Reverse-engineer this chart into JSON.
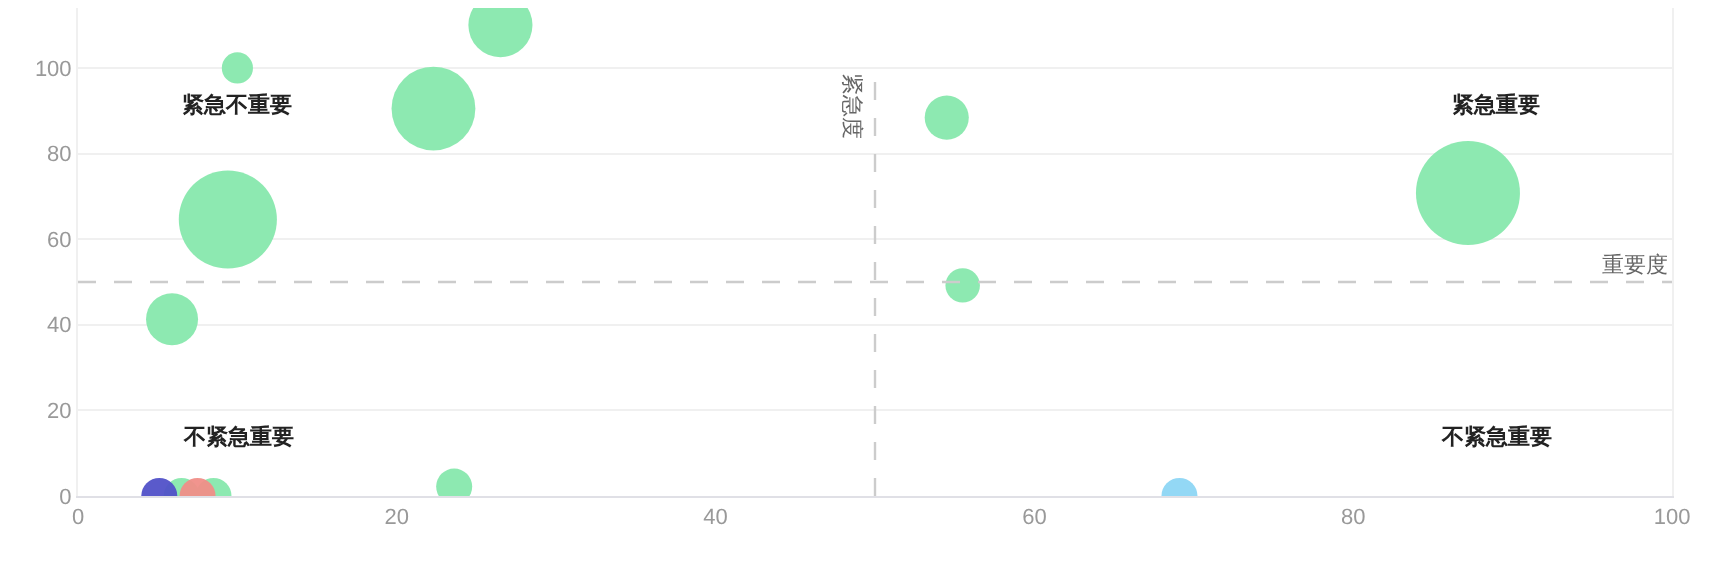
{
  "chart_data": {
    "type": "bubble",
    "annotations": [
      "紧急不重要",
      "紧急重要",
      "不紧急重要",
      "不紧急重要"
    ],
    "x": [
      10,
      26.5,
      22.3,
      9.4,
      5.9,
      54.5,
      87.2,
      55.5,
      23.6,
      69.1,
      6.5,
      8.5,
      5.1,
      7.5
    ],
    "values": [
      100,
      110,
      90.5,
      64.6,
      41.3,
      88.4,
      70.8,
      49.2,
      2.2,
      0,
      0,
      0,
      0,
      0
    ],
    "sizes": [
      0.09,
      0.38,
      0.65,
      0.89,
      0.25,
      0.18,
      1,
      0.11,
      0.12,
      0.12,
      0.12,
      0.12,
      0.12,
      0.12
    ],
    "colors": [
      "#87e8ad",
      "#87e8ad",
      "#87e8ad",
      "#87e8ad",
      "#87e8ad",
      "#87e8ad",
      "#87e8ad",
      "#87e8ad",
      "#87e8ad",
      "#8dd6f4",
      "#87e8ad",
      "#87e8ad",
      "#5151c8",
      "#f08e88"
    ],
    "xlim": [
      0,
      100
    ],
    "xticks": [
      0,
      20,
      40,
      60,
      80,
      100
    ],
    "ylim": [
      0,
      114
    ],
    "yticks": [
      0,
      20,
      40,
      60,
      80,
      100
    ],
    "grid": "y",
    "marker": "circle",
    "ref_lines": [
      {
        "axis": "x",
        "value": 50,
        "label": "紧急度",
        "color": "#cccccc",
        "line_style": "dashed"
      },
      {
        "axis": "y",
        "value": 50,
        "label": "重要度",
        "color": "#cccccc",
        "line_style": "dashed"
      }
    ]
  }
}
